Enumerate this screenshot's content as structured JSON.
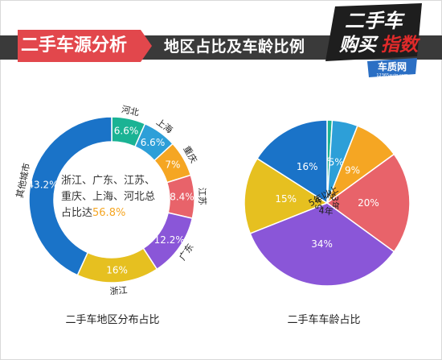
{
  "header": {
    "title": "二手车源分析",
    "subtitle": "地区占比及车龄比例"
  },
  "logo": {
    "line1": "二手车",
    "line2a": "购买",
    "line2b": "指数",
    "site": "车质网",
    "url": "12365auto.com"
  },
  "colors": {
    "header_bar": "#3a3a3a",
    "title_red": "#e2474c",
    "logo_red": "#d92b2b",
    "logo_blue": "#2b6fc4"
  },
  "donut_note": {
    "text": "浙江、广东、江苏、重庆、上海、河北总占比达",
    "highlight": "56.8%"
  },
  "chart_data": [
    {
      "type": "pie",
      "variant": "donut",
      "title": "二手车地区分布占比",
      "slices": [
        {
          "label": "河北",
          "value": 6.6,
          "value_label": "6.6%",
          "color": "#1ab394"
        },
        {
          "label": "上海",
          "value": 6.6,
          "value_label": "6.6%",
          "color": "#2d9fd8"
        },
        {
          "label": "重庆",
          "value": 7,
          "value_label": "7%",
          "color": "#f5a623"
        },
        {
          "label": "江苏",
          "value": 8.4,
          "value_label": "8.4%",
          "color": "#e8636a"
        },
        {
          "label": "广东",
          "value": 12.2,
          "value_label": "12.2%",
          "color": "#8a56d8"
        },
        {
          "label": "浙江",
          "value": 16,
          "value_label": "16%",
          "color": "#e6c020"
        },
        {
          "label": "其他城市",
          "value": 43.2,
          "value_label": "43.2%",
          "color": "#1a73c8"
        }
      ]
    },
    {
      "type": "pie",
      "title": "二手车车龄占比",
      "slices": [
        {
          "label": "1年以内",
          "value": 1,
          "value_label": "1%",
          "color": "#1ab394"
        },
        {
          "label": "1年",
          "value": 5,
          "value_label": "5%",
          "color": "#2d9fd8"
        },
        {
          "label": "2年",
          "value": 9,
          "value_label": "9%",
          "color": "#f5a623"
        },
        {
          "label": "3年",
          "value": 20,
          "value_label": "20%",
          "color": "#e8636a"
        },
        {
          "label": "4年",
          "value": 34,
          "value_label": "34%",
          "color": "#8a56d8"
        },
        {
          "label": "5年",
          "value": 15,
          "value_label": "15%",
          "color": "#e6c020"
        },
        {
          "label": "5年以上",
          "value": 16,
          "value_label": "16%",
          "color": "#1a73c8"
        }
      ]
    }
  ]
}
